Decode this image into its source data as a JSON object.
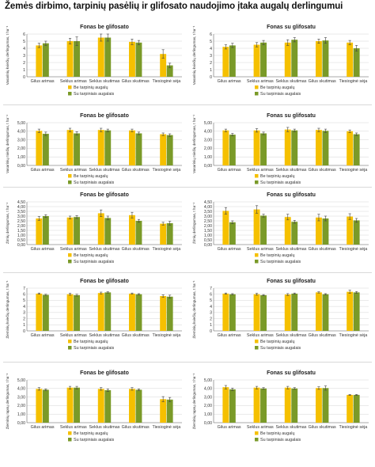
{
  "title": "Žemės dirbimo, tarpinių pasėlių ir glifosato naudojimo įtaka augalų derlingumui",
  "colors": {
    "yellow": "#F5C000",
    "green": "#7A9A28"
  },
  "chart_data": [
    {
      "type": "bar",
      "title": "Fonas be glifosato",
      "ylabel": "Vasarinių kviečių derlingumas, t ha⁻¹",
      "ylim": [
        0,
        6
      ],
      "yticks": [
        "0",
        "1",
        "2",
        "3",
        "4",
        "5",
        "6"
      ],
      "categories": [
        "Gilus arimas",
        "Seklus arimas",
        "Seklus skutimas",
        "Gilus skutimas",
        "Tiesioginė sėja"
      ],
      "legend": [
        "Be tarpinių augalų",
        "Su tarpiniais augalais"
      ],
      "series": [
        {
          "name": "Be tarpinių augalų",
          "values": [
            4.4,
            5.0,
            5.5,
            4.9,
            3.2
          ],
          "err": [
            0.3,
            0.4,
            0.5,
            0.4,
            0.6
          ]
        },
        {
          "name": "Su tarpiniais augalais",
          "values": [
            4.7,
            5.0,
            5.5,
            4.8,
            1.6
          ],
          "err": [
            0.3,
            0.6,
            0.5,
            0.3,
            0.3
          ]
        }
      ]
    },
    {
      "type": "bar",
      "title": "Fonas su glifosatu",
      "ylabel": "Vasarinių kviečių derlingumas, t ha⁻¹",
      "ylim": [
        0,
        6
      ],
      "yticks": [
        "0",
        "1",
        "2",
        "3",
        "4",
        "5",
        "6"
      ],
      "categories": [
        "Gilus arimas",
        "Seklus arimas",
        "Seklus skutimas",
        "Gilus skutimas",
        "Tiesioginė sėja"
      ],
      "legend": [
        "Be tarpinių augalų",
        "Su tarpiniais augalais"
      ],
      "series": [
        {
          "name": "Be tarpinių augalų",
          "values": [
            4.2,
            4.5,
            4.8,
            5.0,
            4.8
          ],
          "err": [
            0.3,
            0.3,
            0.4,
            0.3,
            0.3
          ]
        },
        {
          "name": "Su tarpiniais augalais",
          "values": [
            4.4,
            4.8,
            5.2,
            5.1,
            4.0
          ],
          "err": [
            0.3,
            0.3,
            0.3,
            0.4,
            0.4
          ]
        }
      ]
    },
    {
      "type": "bar",
      "title": "Fonas be glifosato",
      "ylabel": "Vasarinių miežių derlingumas, t ha⁻¹",
      "ylim": [
        0,
        5
      ],
      "yticks": [
        "0,00",
        "1,00",
        "2,00",
        "3,00",
        "4,00",
        "5,00"
      ],
      "categories": [
        "Gilus arimas",
        "Seklus arimas",
        "Seklus skutimas",
        "Gilus skutimas",
        "Tiesioginė sėja"
      ],
      "legend": [
        "Be tarpinių augalų",
        "Su tarpiniais augalais"
      ],
      "series": [
        {
          "name": "Be tarpinių augalų",
          "values": [
            4.05,
            4.15,
            4.15,
            4.1,
            3.65
          ],
          "err": [
            0.2,
            0.2,
            0.2,
            0.15,
            0.15
          ]
        },
        {
          "name": "Su tarpiniais augalais",
          "values": [
            3.7,
            3.75,
            4.1,
            3.75,
            3.55
          ],
          "err": [
            0.2,
            0.2,
            0.15,
            0.15,
            0.15
          ]
        }
      ]
    },
    {
      "type": "bar",
      "title": "Fonas su glifosatu",
      "ylabel": "Vasarinių miežių derlingumas, t ha⁻¹",
      "ylim": [
        0,
        5
      ],
      "yticks": [
        "0,00",
        "1,00",
        "2,00",
        "3,00",
        "4,00",
        "5,00"
      ],
      "categories": [
        "Gilus arimas",
        "Seklus arimas",
        "Seklus skutimas",
        "Gilus skutimas",
        "Tiesioginė sėja"
      ],
      "legend": [
        "Be tarpinių augalų",
        "Su tarpiniais augalais"
      ],
      "series": [
        {
          "name": "Be tarpinių augalų",
          "values": [
            4.1,
            4.1,
            4.2,
            4.15,
            4.0
          ],
          "err": [
            0.15,
            0.2,
            0.25,
            0.2,
            0.15
          ]
        },
        {
          "name": "Su tarpiniais augalais",
          "values": [
            3.6,
            3.75,
            4.1,
            4.05,
            3.65
          ],
          "err": [
            0.15,
            0.15,
            0.15,
            0.2,
            0.15
          ]
        }
      ]
    },
    {
      "type": "bar",
      "title": "Fonas be glifosato",
      "ylabel": "Žirnių derlingumas, t ha⁻¹",
      "ylim": [
        0,
        4.5
      ],
      "yticks": [
        "0,00",
        "0,50",
        "1,00",
        "1,50",
        "2,00",
        "2,50",
        "3,00",
        "3,50",
        "4,00",
        "4,50"
      ],
      "categories": [
        "Gilus arimas",
        "Seklus arimas",
        "Seklus skutimas",
        "Gilus skutimas",
        "Tiesioginė sėja"
      ],
      "legend": [
        "Be tarpinių augalų",
        "Su tarpiniais augalais"
      ],
      "series": [
        {
          "name": "Be tarpinių augalų",
          "values": [
            2.75,
            2.85,
            3.3,
            3.1,
            2.2
          ],
          "err": [
            0.2,
            0.15,
            0.35,
            0.3,
            0.15
          ]
        },
        {
          "name": "Su tarpiniais augalais",
          "values": [
            3.0,
            2.9,
            2.8,
            2.5,
            2.25
          ],
          "err": [
            0.15,
            0.15,
            0.2,
            0.15,
            0.2
          ]
        }
      ]
    },
    {
      "type": "bar",
      "title": "Fonas su glifosatu",
      "ylabel": "Žirnių derlingumas, t ha⁻¹",
      "ylim": [
        0,
        4.5
      ],
      "yticks": [
        "0,00",
        "0,50",
        "1,00",
        "1,50",
        "2,00",
        "2,50",
        "3,00",
        "3,50",
        "4,00",
        "4,50"
      ],
      "categories": [
        "Gilus arimas",
        "Seklus arimas",
        "Seklus skutimas",
        "Gilus skutimas",
        "Tiesioginė sėja"
      ],
      "legend": [
        "Be tarpinių augalų",
        "Su tarpiniais augalais"
      ],
      "series": [
        {
          "name": "Be tarpinių augalų",
          "values": [
            3.55,
            3.7,
            2.9,
            2.85,
            2.95
          ],
          "err": [
            0.35,
            0.4,
            0.3,
            0.35,
            0.3
          ]
        },
        {
          "name": "Su tarpiniais augalais",
          "values": [
            2.35,
            3.05,
            2.4,
            2.75,
            2.55
          ],
          "err": [
            0.15,
            0.15,
            0.15,
            0.25,
            0.2
          ]
        }
      ]
    },
    {
      "type": "bar",
      "title": "Fonas be glifosato",
      "ylabel": "Žieminių kviečių derlingumas, t ha⁻¹",
      "ylim": [
        0,
        7
      ],
      "yticks": [
        "0",
        "1",
        "2",
        "3",
        "4",
        "5",
        "6",
        "7"
      ],
      "categories": [
        "Gilus arimas",
        "Seklus arimas",
        "Seklus skutimas",
        "Gilus skutimas",
        "Tiesioginė sėja"
      ],
      "legend": [
        "Be tarpinių augalų",
        "Su tarpiniais augalais"
      ],
      "series": [
        {
          "name": "Be tarpinių augalų",
          "values": [
            6.1,
            6.0,
            6.2,
            6.1,
            5.7
          ],
          "err": [
            0.1,
            0.15,
            0.15,
            0.1,
            0.2
          ]
        },
        {
          "name": "Su tarpiniais augalais",
          "values": [
            5.9,
            5.85,
            6.3,
            6.0,
            5.6
          ],
          "err": [
            0.1,
            0.15,
            0.1,
            0.1,
            0.25
          ]
        }
      ]
    },
    {
      "type": "bar",
      "title": "Fonas su glifosatu",
      "ylabel": "Žieminių kviečių derlingumas, t ha⁻¹",
      "ylim": [
        0,
        7
      ],
      "yticks": [
        "0",
        "1",
        "2",
        "3",
        "4",
        "5",
        "6",
        "7"
      ],
      "categories": [
        "Gilus arimas",
        "Seklus arimas",
        "Seklus skutimas",
        "Gilus skutimas",
        "Tiesioginė sėja"
      ],
      "legend": [
        "Be tarpinių augalų",
        "Su tarpiniais augalais"
      ],
      "series": [
        {
          "name": "Be tarpinių augalų",
          "values": [
            6.1,
            6.0,
            5.95,
            6.3,
            6.4
          ],
          "err": [
            0.1,
            0.15,
            0.15,
            0.1,
            0.25
          ]
        },
        {
          "name": "Su tarpiniais augalais",
          "values": [
            6.0,
            5.85,
            6.1,
            6.0,
            6.3
          ],
          "err": [
            0.1,
            0.1,
            0.1,
            0.1,
            0.15
          ]
        }
      ]
    },
    {
      "type": "bar",
      "title": "Fonas be glifosato",
      "ylabel": "Žieminių rapsų derlingumas, t ha⁻¹",
      "ylim": [
        0,
        5
      ],
      "yticks": [
        "0,00",
        "1,00",
        "2,00",
        "3,00",
        "4,00",
        "5,00"
      ],
      "categories": [
        "Gilus arimas",
        "Seklus arimas",
        "Seklus skutimas",
        "Gilus skutimas",
        "Tiesioginė sėja"
      ],
      "legend": [
        "Be tarpinių augalų",
        "Su tarpiniais augalais"
      ],
      "series": [
        {
          "name": "Be tarpinių augalų",
          "values": [
            3.95,
            4.1,
            3.95,
            3.95,
            2.75
          ],
          "err": [
            0.15,
            0.15,
            0.15,
            0.15,
            0.3
          ]
        },
        {
          "name": "Su tarpiniais augalais",
          "values": [
            3.85,
            4.1,
            3.8,
            3.85,
            2.7
          ],
          "err": [
            0.1,
            0.15,
            0.15,
            0.1,
            0.25
          ]
        }
      ]
    },
    {
      "type": "bar",
      "title": "Fonas su glifosatu",
      "ylabel": "Žieminių rapsų derlingumas, t ha⁻¹",
      "ylim": [
        0,
        5
      ],
      "yticks": [
        "0,00",
        "1,00",
        "2,00",
        "3,00",
        "4,00",
        "5,00"
      ],
      "categories": [
        "Gilus arimas",
        "Seklus arimas",
        "Seklus skutimas",
        "Gilus skutimas",
        "Tiesioginė sėja"
      ],
      "legend": [
        "Be tarpinių augalų",
        "Su tarpiniais augalais"
      ],
      "series": [
        {
          "name": "Be tarpinių augalų",
          "values": [
            4.15,
            4.1,
            4.1,
            4.05,
            3.25
          ],
          "err": [
            0.2,
            0.15,
            0.15,
            0.15,
            0.05
          ]
        },
        {
          "name": "Su tarpiniais augalais",
          "values": [
            3.9,
            4.0,
            4.0,
            4.05,
            3.25
          ],
          "err": [
            0.15,
            0.1,
            0.1,
            0.25,
            0.05
          ]
        }
      ]
    }
  ]
}
